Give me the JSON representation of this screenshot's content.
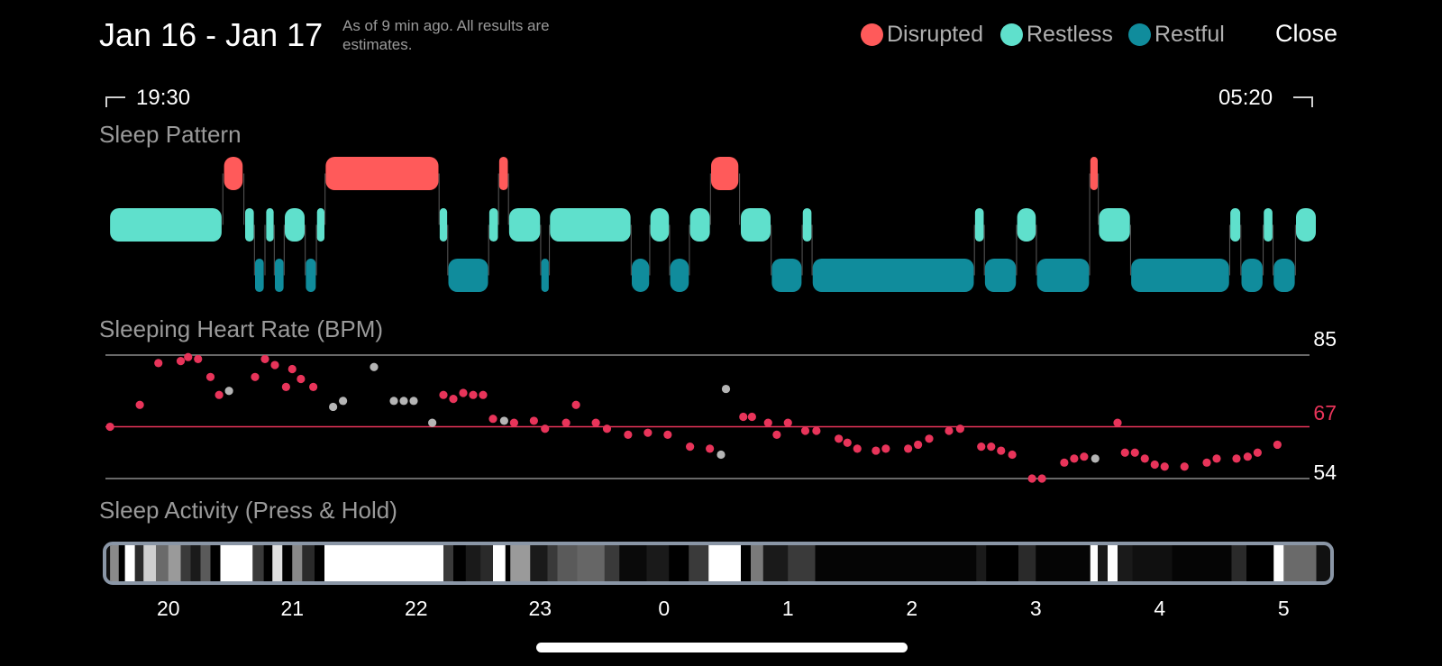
{
  "header": {
    "date_range": "Jan 16 - Jan 17",
    "as_of": "As of 9 min ago. All results are estimates.",
    "close_label": "Close"
  },
  "legend": [
    {
      "label": "Disrupted",
      "color": "#ff5a5a"
    },
    {
      "label": "Restless",
      "color": "#5fe0cc"
    },
    {
      "label": "Restful",
      "color": "#108c9c"
    }
  ],
  "colors": {
    "disrupted": "#ff5a5a",
    "restless": "#5fe0cc",
    "restful": "#108c9c",
    "heart_dot": "#e8345a",
    "heart_dot_gray": "#b5b5b5",
    "average_line": "#e8345a",
    "grid_line": "#8a8a8a",
    "activity_border": "#8a96a6"
  },
  "time_range": {
    "start": "19:30",
    "end": "05:20"
  },
  "sections": {
    "sleep_pattern": "Sleep Pattern",
    "heart_rate": "Sleeping Heart Rate (BPM)",
    "activity": "Sleep Activity (Press & Hold)"
  },
  "heart_rate": {
    "max_label": "85",
    "avg_label": "67",
    "min_label": "54",
    "max": 85,
    "avg": 67,
    "min": 54,
    "points": [
      [
        19.53,
        67,
        "r"
      ],
      [
        19.77,
        72.5,
        "r"
      ],
      [
        19.92,
        83,
        "r"
      ],
      [
        20.1,
        83.5,
        "r"
      ],
      [
        20.16,
        84.5,
        "r"
      ],
      [
        20.24,
        84,
        "r"
      ],
      [
        20.34,
        79.5,
        "r"
      ],
      [
        20.41,
        75,
        "r"
      ],
      [
        20.49,
        76,
        "g"
      ],
      [
        20.7,
        79.5,
        "r"
      ],
      [
        20.78,
        84,
        "r"
      ],
      [
        20.86,
        82.5,
        "r"
      ],
      [
        20.95,
        77,
        "r"
      ],
      [
        21.0,
        81.5,
        "r"
      ],
      [
        21.07,
        79,
        "r"
      ],
      [
        21.17,
        77,
        "r"
      ],
      [
        21.33,
        72,
        "g"
      ],
      [
        21.41,
        73.5,
        "g"
      ],
      [
        21.66,
        82,
        "g"
      ],
      [
        21.82,
        73.5,
        "g"
      ],
      [
        21.9,
        73.5,
        "g"
      ],
      [
        21.98,
        73.5,
        "g"
      ],
      [
        22.13,
        68,
        "g"
      ],
      [
        22.22,
        75,
        "r"
      ],
      [
        22.3,
        74,
        "r"
      ],
      [
        22.38,
        75.5,
        "r"
      ],
      [
        22.46,
        75,
        "r"
      ],
      [
        22.54,
        75,
        "r"
      ],
      [
        22.62,
        69,
        "r"
      ],
      [
        22.71,
        68.5,
        "g"
      ],
      [
        22.79,
        68,
        "r"
      ],
      [
        22.95,
        68.5,
        "r"
      ],
      [
        23.04,
        66.5,
        "r"
      ],
      [
        23.21,
        68,
        "r"
      ],
      [
        23.29,
        72.5,
        "r"
      ],
      [
        23.45,
        68,
        "r"
      ],
      [
        23.54,
        66.5,
        "r"
      ],
      [
        23.71,
        65,
        "r"
      ],
      [
        23.87,
        65.5,
        "r"
      ],
      [
        24.03,
        65,
        "r"
      ],
      [
        24.21,
        62,
        "r"
      ],
      [
        24.37,
        61.5,
        "r"
      ],
      [
        24.46,
        60,
        "g"
      ],
      [
        24.5,
        76.5,
        "g"
      ],
      [
        24.64,
        69.5,
        "r"
      ],
      [
        24.71,
        69.5,
        "r"
      ],
      [
        24.84,
        68,
        "r"
      ],
      [
        24.91,
        65,
        "r"
      ],
      [
        25.0,
        68,
        "r"
      ],
      [
        25.14,
        66,
        "r"
      ],
      [
        25.23,
        66,
        "r"
      ],
      [
        25.41,
        64,
        "r"
      ],
      [
        25.48,
        63,
        "r"
      ],
      [
        25.56,
        61.5,
        "r"
      ],
      [
        25.71,
        61,
        "r"
      ],
      [
        25.79,
        61.5,
        "r"
      ],
      [
        25.97,
        61.5,
        "r"
      ],
      [
        26.05,
        62.5,
        "r"
      ],
      [
        26.14,
        64,
        "r"
      ],
      [
        26.3,
        66,
        "r"
      ],
      [
        26.39,
        66.5,
        "r"
      ],
      [
        26.56,
        62,
        "r"
      ],
      [
        26.64,
        62,
        "r"
      ],
      [
        26.72,
        61,
        "r"
      ],
      [
        26.81,
        60,
        "r"
      ],
      [
        26.97,
        54,
        "r"
      ],
      [
        27.05,
        54,
        "r"
      ],
      [
        27.23,
        58,
        "r"
      ],
      [
        27.31,
        59,
        "r"
      ],
      [
        27.39,
        59.5,
        "r"
      ],
      [
        27.48,
        59,
        "g"
      ],
      [
        27.66,
        68,
        "r"
      ],
      [
        27.72,
        60.5,
        "r"
      ],
      [
        27.8,
        60.5,
        "r"
      ],
      [
        27.88,
        59,
        "r"
      ],
      [
        27.96,
        57.5,
        "r"
      ],
      [
        28.04,
        57,
        "r"
      ],
      [
        28.2,
        57,
        "r"
      ],
      [
        28.38,
        58,
        "r"
      ],
      [
        28.46,
        59,
        "r"
      ],
      [
        28.62,
        59,
        "r"
      ],
      [
        28.71,
        59.5,
        "r"
      ],
      [
        28.79,
        60.5,
        "r"
      ],
      [
        28.95,
        62.5,
        "r"
      ]
    ]
  },
  "activity_hours": [
    "20",
    "21",
    "22",
    "23",
    "0",
    "1",
    "2",
    "3",
    "4",
    "5"
  ],
  "hypnogram": [
    [
      "restless",
      19.53,
      20.43
    ],
    [
      "disrupted",
      20.45,
      20.6
    ],
    [
      "restless",
      20.62,
      20.69
    ],
    [
      "restful",
      20.7,
      20.77
    ],
    [
      "restless",
      20.79,
      20.85
    ],
    [
      "restful",
      20.86,
      20.93
    ],
    [
      "restless",
      20.94,
      21.1
    ],
    [
      "restful",
      21.11,
      21.19
    ],
    [
      "restless",
      21.2,
      21.26
    ],
    [
      "disrupted",
      21.27,
      22.18
    ],
    [
      "restless",
      22.19,
      22.25
    ],
    [
      "restful",
      22.26,
      22.58
    ],
    [
      "restless",
      22.59,
      22.66
    ],
    [
      "disrupted",
      22.67,
      22.74
    ],
    [
      "restless",
      22.75,
      23.0
    ],
    [
      "restful",
      23.01,
      23.07
    ],
    [
      "restless",
      23.08,
      23.73
    ],
    [
      "restful",
      23.74,
      23.88
    ],
    [
      "restless",
      23.89,
      24.04
    ],
    [
      "restful",
      24.05,
      24.2
    ],
    [
      "restless",
      24.21,
      24.37
    ],
    [
      "disrupted",
      24.38,
      24.6
    ],
    [
      "restless",
      24.62,
      24.86
    ],
    [
      "restful",
      24.87,
      25.11
    ],
    [
      "restless",
      25.12,
      25.19
    ],
    [
      "restful",
      25.2,
      26.5
    ],
    [
      "restless",
      26.51,
      26.58
    ],
    [
      "restful",
      26.59,
      26.84
    ],
    [
      "restless",
      26.85,
      27.0
    ],
    [
      "restful",
      27.01,
      27.43
    ],
    [
      "disrupted",
      27.44,
      27.5
    ],
    [
      "restless",
      27.51,
      27.76
    ],
    [
      "restful",
      27.77,
      28.56
    ],
    [
      "restless",
      28.57,
      28.65
    ],
    [
      "restful",
      28.66,
      28.83
    ],
    [
      "restless",
      28.84,
      28.91
    ],
    [
      "restful",
      28.92,
      29.09
    ],
    [
      "restless",
      29.1,
      29.26
    ]
  ],
  "activity_segments": [
    [
      19.53,
      19.6,
      "#8a8a8a"
    ],
    [
      19.6,
      19.65,
      "#000"
    ],
    [
      19.65,
      19.73,
      "#ffffff"
    ],
    [
      19.73,
      19.8,
      "#2a2a2a"
    ],
    [
      19.8,
      19.9,
      "#cfcfcf"
    ],
    [
      19.9,
      20.0,
      "#6a6a6a"
    ],
    [
      20.0,
      20.1,
      "#9a9a9a"
    ],
    [
      20.1,
      20.18,
      "#3a3a3a"
    ],
    [
      20.18,
      20.26,
      "#1a1a1a"
    ],
    [
      20.26,
      20.34,
      "#5a5a5a"
    ],
    [
      20.34,
      20.42,
      "#000"
    ],
    [
      20.42,
      20.68,
      "#ffffff"
    ],
    [
      20.68,
      20.77,
      "#3a3a3a"
    ],
    [
      20.77,
      20.84,
      "#000"
    ],
    [
      20.84,
      20.92,
      "#e0e0e0"
    ],
    [
      20.92,
      21.0,
      "#000"
    ],
    [
      21.0,
      21.08,
      "#888"
    ],
    [
      21.08,
      21.18,
      "#2a2a2a"
    ],
    [
      21.18,
      21.26,
      "#000"
    ],
    [
      21.26,
      22.22,
      "#ffffff"
    ],
    [
      22.22,
      22.3,
      "#3a3a3a"
    ],
    [
      22.3,
      22.4,
      "#000"
    ],
    [
      22.4,
      22.52,
      "#1a1a1a"
    ],
    [
      22.52,
      22.62,
      "#2a2a2a"
    ],
    [
      22.62,
      22.72,
      "#ffffff"
    ],
    [
      22.72,
      22.76,
      "#000"
    ],
    [
      22.76,
      22.92,
      "#9a9a9a"
    ],
    [
      22.92,
      23.06,
      "#1a1a1a"
    ],
    [
      23.06,
      23.14,
      "#3a3a3a"
    ],
    [
      23.14,
      23.3,
      "#5a5a5a"
    ],
    [
      23.3,
      23.52,
      "#666"
    ],
    [
      23.52,
      23.64,
      "#3a3a3a"
    ],
    [
      23.64,
      23.86,
      "#0a0a0a"
    ],
    [
      23.86,
      24.04,
      "#1a1a1a"
    ],
    [
      24.04,
      24.2,
      "#000"
    ],
    [
      24.2,
      24.36,
      "#3a3a3a"
    ],
    [
      24.36,
      24.62,
      "#ffffff"
    ],
    [
      24.62,
      24.7,
      "#000"
    ],
    [
      24.7,
      24.8,
      "#7a7a7a"
    ],
    [
      24.8,
      25.0,
      "#1a1a1a"
    ],
    [
      25.0,
      25.22,
      "#3a3a3a"
    ],
    [
      25.22,
      26.52,
      "#050505"
    ],
    [
      26.52,
      26.6,
      "#1a1a1a"
    ],
    [
      26.6,
      26.86,
      "#000"
    ],
    [
      26.86,
      27.0,
      "#2a2a2a"
    ],
    [
      27.0,
      27.44,
      "#050505"
    ],
    [
      27.44,
      27.5,
      "#ffffff"
    ],
    [
      27.5,
      27.58,
      "#1a1a1a"
    ],
    [
      27.58,
      27.66,
      "#ffffff"
    ],
    [
      27.66,
      27.78,
      "#1a1a1a"
    ],
    [
      27.78,
      28.1,
      "#101010"
    ],
    [
      28.1,
      28.58,
      "#050505"
    ],
    [
      28.58,
      28.7,
      "#2a2a2a"
    ],
    [
      28.7,
      28.92,
      "#000"
    ],
    [
      28.92,
      29.0,
      "#ffffff"
    ],
    [
      29.0,
      29.26,
      "#6a6a6a"
    ]
  ]
}
